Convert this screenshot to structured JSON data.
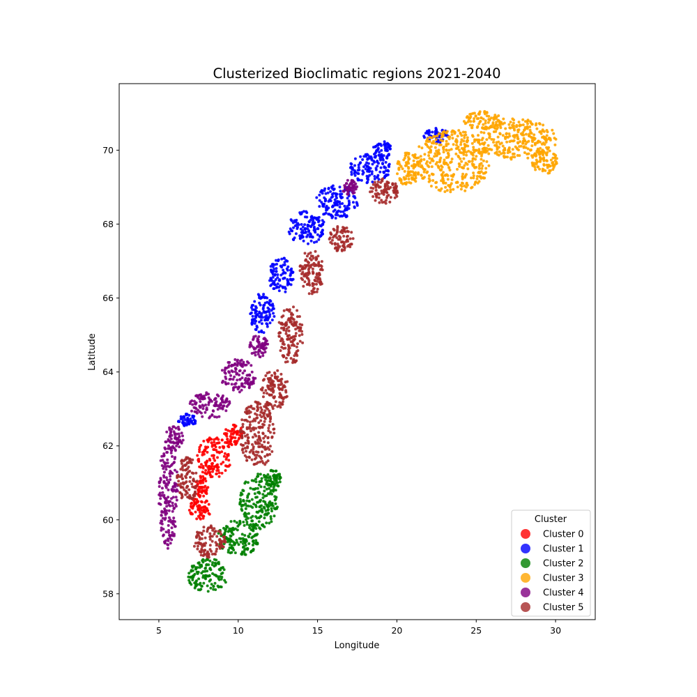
{
  "chart_data": {
    "type": "scatter",
    "title": "Clusterized Bioclimatic regions 2021-2040",
    "xlabel": "Longitude",
    "ylabel": "Latitude",
    "xlim": [
      2.5,
      32.5
    ],
    "ylim": [
      57.3,
      71.8
    ],
    "xticks": [
      "5",
      "10",
      "15",
      "20",
      "25",
      "30"
    ],
    "yticks": [
      "58",
      "60",
      "62",
      "64",
      "66",
      "68",
      "70"
    ],
    "xtick_values": [
      5,
      10,
      15,
      20,
      25,
      30
    ],
    "ytick_values": [
      58,
      60,
      62,
      64,
      66,
      68,
      70
    ],
    "grid": false,
    "legend": {
      "title": "Cluster",
      "placement": "lower-right",
      "entries": [
        "Cluster 0",
        "Cluster 1",
        "Cluster 2",
        "Cluster 3",
        "Cluster 4",
        "Cluster 5"
      ]
    },
    "series": [
      {
        "name": "Cluster 0",
        "color": "#ff0000",
        "regions": [
          {
            "center": [
              8.5,
              61.7
            ],
            "radius": [
              1.1,
              0.55
            ]
          },
          {
            "center": [
              9.7,
              62.3
            ],
            "radius": [
              0.6,
              0.3
            ]
          },
          {
            "center": [
              7.6,
              60.3
            ],
            "radius": [
              0.7,
              0.3
            ]
          },
          {
            "center": [
              7.7,
              60.9
            ],
            "radius": [
              0.4,
              0.3
            ]
          }
        ]
      },
      {
        "name": "Cluster 1",
        "color": "#0000ff",
        "regions": [
          {
            "center": [
              6.8,
              62.7
            ],
            "radius": [
              0.6,
              0.18
            ]
          },
          {
            "center": [
              11.5,
              65.6
            ],
            "radius": [
              0.8,
              0.55
            ]
          },
          {
            "center": [
              12.7,
              66.6
            ],
            "radius": [
              0.8,
              0.5
            ]
          },
          {
            "center": [
              14.3,
              67.9
            ],
            "radius": [
              1.2,
              0.45
            ]
          },
          {
            "center": [
              16.2,
              68.6
            ],
            "radius": [
              1.4,
              0.45
            ]
          },
          {
            "center": [
              18.3,
              69.5
            ],
            "radius": [
              1.3,
              0.4
            ]
          },
          {
            "center": [
              19.1,
              70.0
            ],
            "radius": [
              0.6,
              0.25
            ]
          },
          {
            "center": [
              22.5,
              70.4
            ],
            "radius": [
              0.8,
              0.2
            ]
          }
        ]
      },
      {
        "name": "Cluster 2",
        "color": "#008000",
        "regions": [
          {
            "center": [
              11.3,
              60.5
            ],
            "radius": [
              1.2,
              0.75
            ]
          },
          {
            "center": [
              10.0,
              59.5
            ],
            "radius": [
              1.3,
              0.5
            ]
          },
          {
            "center": [
              8.1,
              58.5
            ],
            "radius": [
              1.3,
              0.45
            ]
          },
          {
            "center": [
              12.2,
              61.1
            ],
            "radius": [
              0.5,
              0.25
            ]
          }
        ]
      },
      {
        "name": "Cluster 3",
        "color": "#ffa500",
        "regions": [
          {
            "center": [
              23.5,
              69.7
            ],
            "radius": [
              2.4,
              0.85
            ]
          },
          {
            "center": [
              27.5,
              70.3
            ],
            "radius": [
              2.6,
              0.55
            ]
          },
          {
            "center": [
              25.5,
              70.8
            ],
            "radius": [
              1.3,
              0.25
            ]
          },
          {
            "center": [
              20.7,
              69.5
            ],
            "radius": [
              0.7,
              0.5
            ]
          },
          {
            "center": [
              29.3,
              69.7
            ],
            "radius": [
              0.8,
              0.35
            ]
          }
        ]
      },
      {
        "name": "Cluster 4",
        "color": "#800080",
        "regions": [
          {
            "center": [
              5.6,
              60.7
            ],
            "radius": [
              0.6,
              1.5
            ]
          },
          {
            "center": [
              6.0,
              62.2
            ],
            "radius": [
              0.6,
              0.35
            ]
          },
          {
            "center": [
              8.2,
              63.1
            ],
            "radius": [
              1.3,
              0.35
            ]
          },
          {
            "center": [
              10.0,
              63.9
            ],
            "radius": [
              1.1,
              0.45
            ]
          },
          {
            "center": [
              11.3,
              64.7
            ],
            "radius": [
              0.6,
              0.3
            ]
          },
          {
            "center": [
              17.0,
              69.0
            ],
            "radius": [
              0.5,
              0.2
            ]
          }
        ]
      },
      {
        "name": "Cluster 5",
        "color": "#a52a2a",
        "regions": [
          {
            "center": [
              11.2,
              62.3
            ],
            "radius": [
              1.1,
              0.9
            ]
          },
          {
            "center": [
              12.3,
              63.5
            ],
            "radius": [
              0.9,
              0.55
            ]
          },
          {
            "center": [
              13.3,
              65.0
            ],
            "radius": [
              0.8,
              0.8
            ]
          },
          {
            "center": [
              14.6,
              66.7
            ],
            "radius": [
              0.8,
              0.6
            ]
          },
          {
            "center": [
              16.5,
              67.6
            ],
            "radius": [
              0.8,
              0.35
            ]
          },
          {
            "center": [
              8.2,
              59.4
            ],
            "radius": [
              1.0,
              0.45
            ]
          },
          {
            "center": [
              6.8,
              61.1
            ],
            "radius": [
              0.7,
              0.6
            ]
          },
          {
            "center": [
              19.2,
              68.9
            ],
            "radius": [
              0.9,
              0.35
            ]
          }
        ]
      }
    ]
  }
}
